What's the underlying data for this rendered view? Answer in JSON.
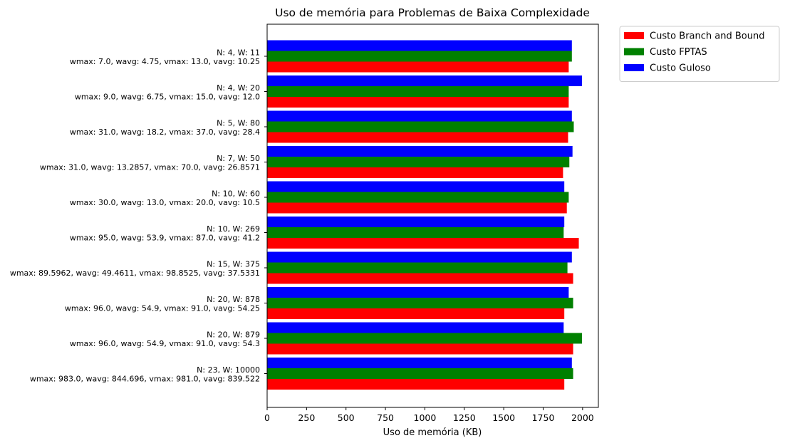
{
  "chart_data": {
    "type": "bar",
    "orientation": "horizontal",
    "title": "Uso de memória para Problemas de Baixa Complexidade",
    "xlabel": "Uso de memória (KB)",
    "ylabel": "",
    "xlim": [
      0,
      2100
    ],
    "xticks": [
      0,
      250,
      500,
      750,
      1000,
      1250,
      1500,
      1750,
      2000
    ],
    "grid": false,
    "legend_position": "outside-top-right",
    "categories": [
      {
        "line1": "N: 4, W:  11",
        "line2": "wmax: 7.0, wavg: 4.75, vmax: 13.0, vavg: 10.25"
      },
      {
        "line1": "N: 4, W:  20",
        "line2": "wmax: 9.0, wavg: 6.75, vmax: 15.0, vavg: 12.0"
      },
      {
        "line1": "N: 5, W:  80",
        "line2": "wmax: 31.0, wavg: 18.2, vmax: 37.0, vavg: 28.4"
      },
      {
        "line1": "N: 7, W:  50",
        "line2": "wmax: 31.0, wavg: 13.2857, vmax: 70.0, vavg: 26.8571"
      },
      {
        "line1": "N: 10, W:  60",
        "line2": "wmax: 30.0, wavg: 13.0, vmax: 20.0, vavg: 10.5"
      },
      {
        "line1": "N: 10, W:  269",
        "line2": "wmax: 95.0, wavg: 53.9, vmax: 87.0, vavg: 41.2"
      },
      {
        "line1": "N: 15, W:  375",
        "line2": "wmax: 89.5962, wavg: 49.4611, vmax: 98.8525, vavg: 37.5331"
      },
      {
        "line1": "N: 20, W:  878",
        "line2": "wmax: 96.0, wavg: 54.9, vmax: 91.0, vavg: 54.25"
      },
      {
        "line1": "N: 20, W:  879",
        "line2": "wmax: 96.0, wavg: 54.9, vmax: 91.0, vavg: 54.3"
      },
      {
        "line1": "N: 23, W:  10000",
        "line2": "wmax: 983.0, wavg: 844.696, vmax: 981.0, vavg: 839.522"
      }
    ],
    "series": [
      {
        "name": "Custo Branch and Bound",
        "color": "#ff0000",
        "values": [
          1912,
          1912,
          1908,
          1876,
          1900,
          1976,
          1940,
          1884,
          1940,
          1884
        ]
      },
      {
        "name": "Custo FPTAS",
        "color": "#008000",
        "values": [
          1932,
          1912,
          1944,
          1916,
          1912,
          1880,
          1904,
          1940,
          1996,
          1940
        ]
      },
      {
        "name": "Custo Guloso",
        "color": "#0000ff",
        "values": [
          1932,
          1996,
          1932,
          1936,
          1884,
          1884,
          1932,
          1912,
          1880,
          1932
        ]
      }
    ]
  }
}
